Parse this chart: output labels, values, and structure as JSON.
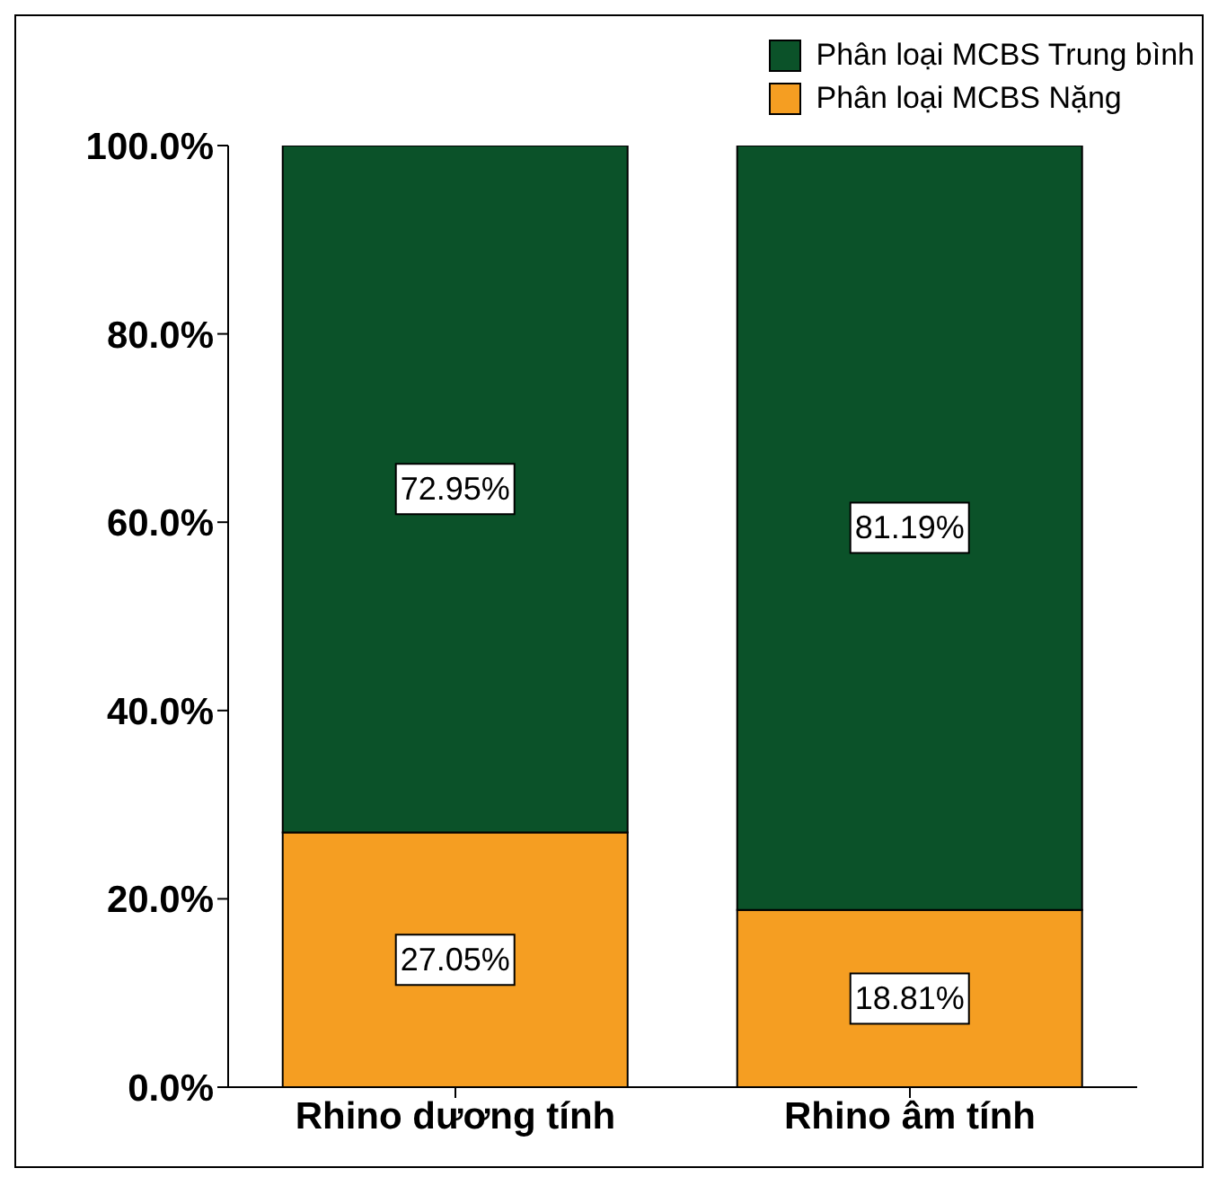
{
  "chart_data": {
    "type": "bar",
    "stacked": true,
    "categories": [
      "Rhino dương tính",
      "Rhino âm tính"
    ],
    "series": [
      {
        "name": "Phân loại MCBS Nặng",
        "color": "#f59e22",
        "values": [
          27.05,
          18.81
        ],
        "value_labels": [
          "27.05%",
          "18.81%"
        ]
      },
      {
        "name": "Phân loại MCBS Trung bình",
        "color": "#0b5229",
        "values": [
          72.95,
          81.19
        ],
        "value_labels": [
          "72.95%",
          "81.19%"
        ]
      }
    ],
    "ylim": [
      0,
      100
    ],
    "yticks": [
      {
        "value": 0,
        "label": "0.0%"
      },
      {
        "value": 20,
        "label": "20.0%"
      },
      {
        "value": 40,
        "label": "40.0%"
      },
      {
        "value": 60,
        "label": "60.0%"
      },
      {
        "value": 80,
        "label": "80.0%"
      },
      {
        "value": 100,
        "label": "100.0%"
      }
    ],
    "grid": false,
    "legend": "top right"
  }
}
